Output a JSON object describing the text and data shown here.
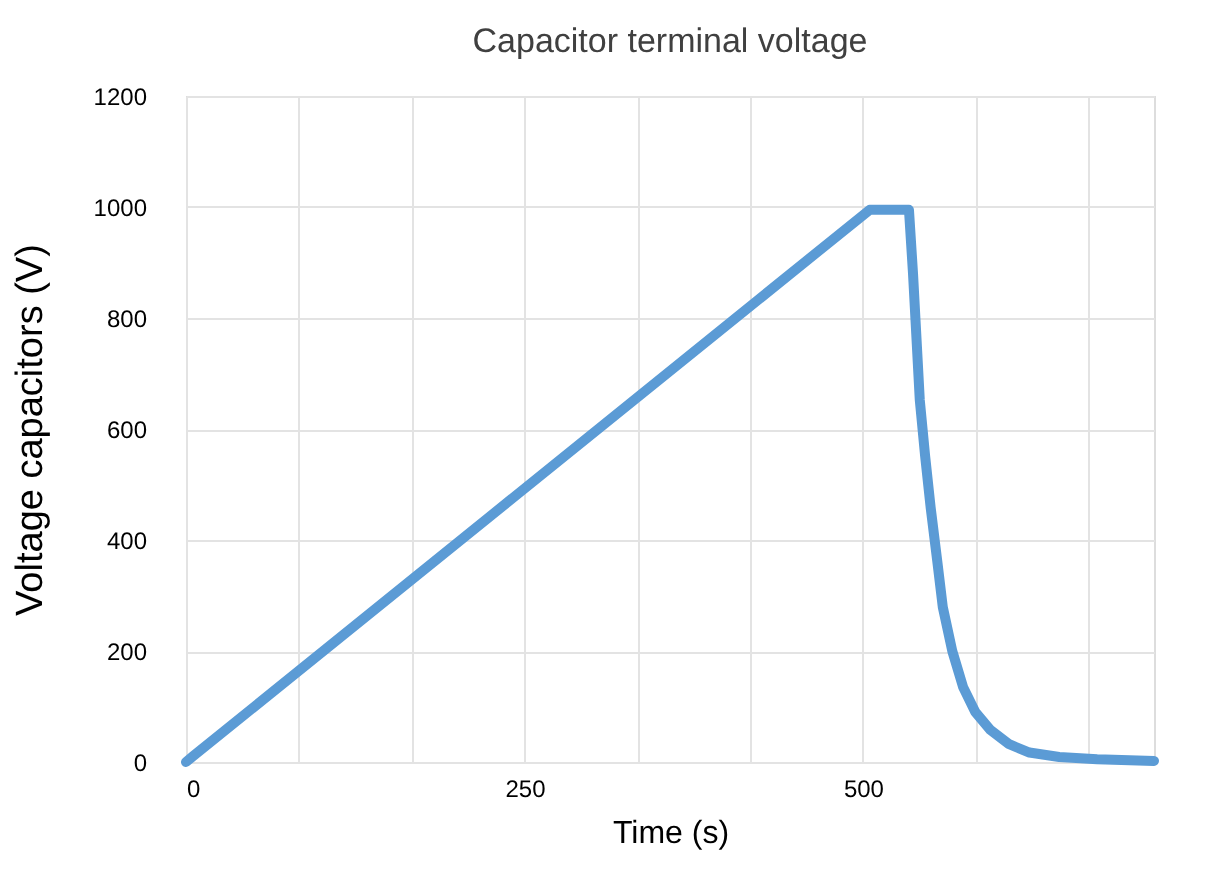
{
  "chart_data": {
    "type": "line",
    "title": "Capacitor terminal voltage",
    "xlabel": "Time (s)",
    "ylabel": "Voltage capacitors (V)",
    "x": [
      0,
      5,
      505,
      534,
      537,
      542,
      546,
      550,
      555,
      559,
      566,
      574,
      583,
      594,
      608,
      623,
      645,
      673,
      715
    ],
    "series": [
      {
        "color": "#5b9bd5",
        "values": [
          0,
          10,
          995,
          995,
          880,
          652,
          550,
          459,
          360,
          279,
          200,
          135,
          90,
          58,
          32,
          17,
          9,
          5,
          2
        ]
      }
    ],
    "xlim": [
      0,
      715
    ],
    "xticks": [
      0,
      {
        "value": 83.33,
        "label": null
      },
      {
        "value": 166.67,
        "label": null
      },
      250,
      {
        "value": 333.33,
        "label": null
      },
      {
        "value": 416.67,
        "label": null
      },
      500,
      {
        "value": 583.33,
        "label": null
      },
      {
        "value": 666.67,
        "label": null
      }
    ],
    "ylim": [
      0,
      1200
    ],
    "yticks": [
      0,
      200,
      400,
      600,
      800,
      1000,
      1200
    ],
    "grid": true,
    "line_style": "solid",
    "marker": "none"
  }
}
